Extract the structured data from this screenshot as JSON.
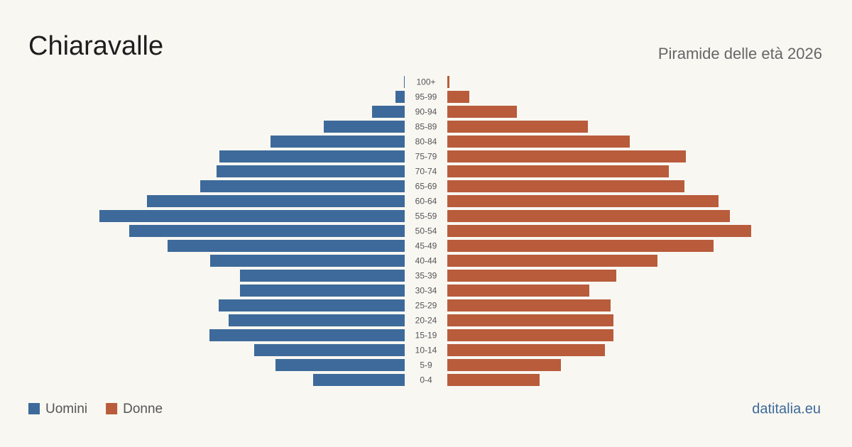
{
  "chart_data": {
    "type": "pyramid",
    "title": "Chiaravalle",
    "subtitle": "Piramide delle età 2026",
    "source": "datitalia.eu",
    "categories": [
      "100+",
      "95-99",
      "90-94",
      "85-89",
      "80-84",
      "75-79",
      "70-74",
      "65-69",
      "60-64",
      "55-59",
      "50-54",
      "45-49",
      "40-44",
      "35-39",
      "30-34",
      "25-29",
      "20-24",
      "15-19",
      "10-14",
      "5-9",
      "0-4"
    ],
    "xlim": [
      0,
      430
    ],
    "series": [
      {
        "name": "Uomini",
        "color": "#3d6a9a",
        "values": [
          1,
          13,
          46,
          114,
          189,
          261,
          265,
          288,
          363,
          430,
          388,
          334,
          274,
          232,
          232,
          262,
          248,
          275,
          212,
          182,
          129
        ]
      },
      {
        "name": "Donne",
        "color": "#b85c3c",
        "values": [
          3,
          31,
          98,
          198,
          257,
          336,
          312,
          334,
          382,
          398,
          428,
          375,
          296,
          238,
          200,
          230,
          234,
          234,
          222,
          160,
          130
        ]
      }
    ]
  }
}
